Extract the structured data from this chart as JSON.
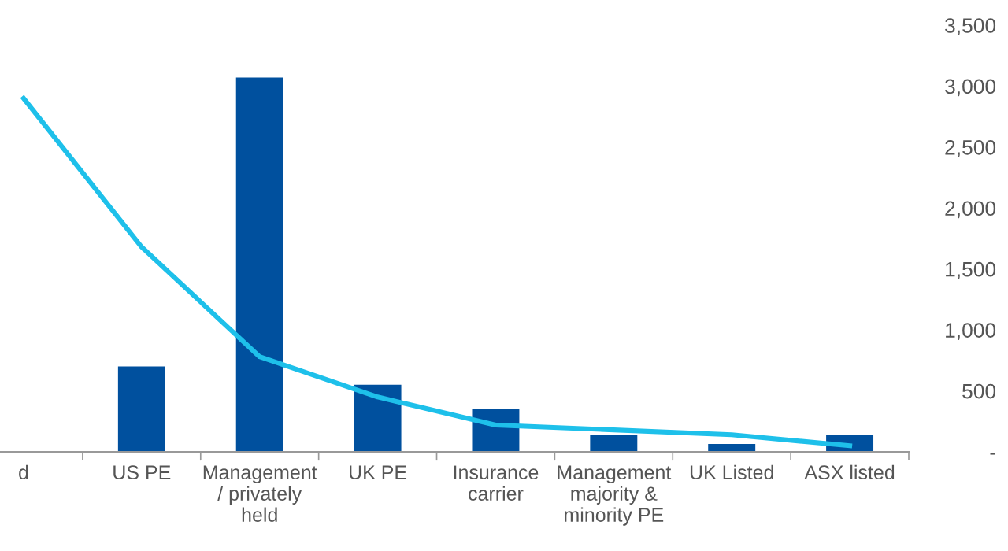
{
  "chart_data": {
    "type": "bar",
    "categories": [
      "d",
      "US PE",
      "Management / privately held",
      "UK PE",
      "Insurance carrier",
      "Management majority & minority PE",
      "UK Listed",
      "ASX listed"
    ],
    "series": [
      {
        "color": "#00509e",
        "values": [
          null,
          700,
          3070,
          550,
          350,
          140,
          65,
          140
        ]
      },
      {
        "type": "line",
        "color": "#1ec0ea",
        "values": [
          2900,
          1680,
          780,
          450,
          220,
          180,
          140,
          50
        ]
      }
    ],
    "ylim": [
      0,
      3500
    ],
    "yticks": [
      {
        "value": 0,
        "label": "-"
      },
      {
        "value": 500,
        "label": "500"
      },
      {
        "value": 1000,
        "label": "1,000"
      },
      {
        "value": 1500,
        "label": "1,500"
      },
      {
        "value": 2000,
        "label": "2,000"
      },
      {
        "value": 2500,
        "label": "2,500"
      },
      {
        "value": 3000,
        "label": "3,000"
      },
      {
        "value": 3500,
        "label": "3,500"
      }
    ],
    "grid": false,
    "legend": false,
    "marker": "none"
  }
}
